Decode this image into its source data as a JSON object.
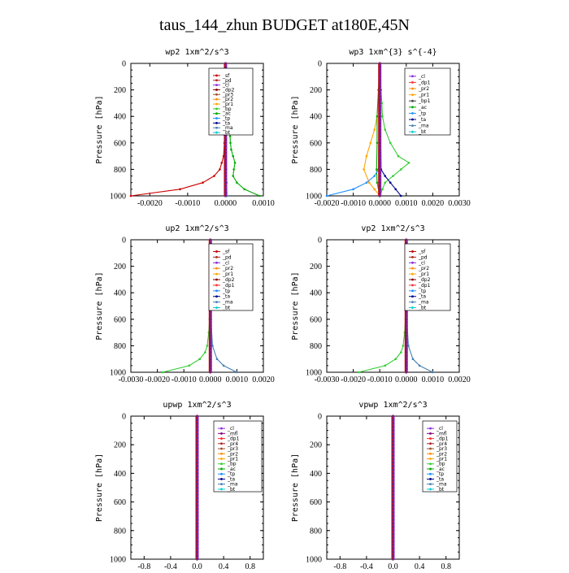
{
  "figure_title": "taus_144_zhun  BUDGET at180E,45N",
  "colors": {
    "sf": "#cc0000",
    "pd": "#b22222",
    "cl": "#8a2be2",
    "dp2": "#8b0000",
    "pr3": "#a0522d",
    "pr2": "#ff8c00",
    "pr1": "#ffa500",
    "bp": "#32cd32",
    "ac": "#00aa00",
    "tp": "#1e90ff",
    "ta": "#00008b",
    "ma": "#4682b4",
    "bt": "#00ced1",
    "dp1": "#ff3030",
    "mfl": "#800080",
    "pr4": "#b22222"
  },
  "chart_data": [
    {
      "type": "line",
      "title": "wp2   1xm^2/s^3",
      "ylabel": "Pressure [hPa]",
      "xlim": [
        -0.0025,
        0.001
      ],
      "ylim": [
        1000,
        0
      ],
      "xticks": [
        -0.002,
        -0.001,
        0.0,
        0.001
      ],
      "xtick_labels": [
        "-0.0020",
        "-0.0010",
        "0.0000",
        "0.0010"
      ],
      "yticks": [
        0,
        200,
        400,
        600,
        800,
        1000
      ],
      "ytick_labels": [
        "0",
        "200",
        "400",
        "600",
        "800",
        "1000"
      ],
      "legend": [
        "_sf",
        "_pd",
        "_cl",
        "_dp2",
        "_pr3",
        "_pr2",
        "_pr1",
        "_bp",
        "_ac",
        "_tp",
        "_ta",
        "_ma",
        "_bt"
      ],
      "legend_position": "top-right",
      "series": [
        {
          "name": "_sf",
          "color": "#cc0000",
          "y": [
            0,
            100,
            200,
            300,
            400,
            500,
            600,
            700,
            750,
            800,
            850,
            900,
            950,
            1000
          ],
          "x": [
            0,
            0,
            0,
            0,
            0,
            -1e-05,
            -3e-05,
            -5e-05,
            -0.0001,
            -0.00015,
            -0.0003,
            -0.0006,
            -0.0012,
            -0.0025
          ]
        },
        {
          "name": "_ac",
          "color": "#00aa00",
          "y": [
            0,
            200,
            400,
            500,
            550,
            600,
            650,
            700,
            750,
            800,
            850,
            900,
            950,
            1000
          ],
          "x": [
            0,
            1e-05,
            4e-05,
            8e-05,
            0.00012,
            0.00013,
            0.00015,
            0.0002,
            0.00025,
            0.00022,
            0.0002,
            0.0003,
            0.0005,
            0.0009
          ]
        },
        {
          "name": "_cl",
          "color": "#8a2be2",
          "y": [
            0,
            200,
            400,
            600,
            800,
            900,
            1000
          ],
          "x": [
            0,
            0,
            0,
            0,
            0,
            0,
            0
          ]
        },
        {
          "name": "_dp2",
          "color": "#8b0000",
          "y": [
            0,
            200,
            400,
            600,
            800,
            900,
            1000
          ],
          "x": [
            0,
            0,
            0,
            0,
            1e-05,
            2e-05,
            3e-05
          ]
        },
        {
          "name": "_tp",
          "color": "#1e90ff",
          "y": [
            0,
            400,
            800,
            900,
            1000
          ],
          "x": [
            0,
            0,
            2e-05,
            3e-05,
            4e-05
          ]
        }
      ]
    },
    {
      "type": "line",
      "title": "wp3   1xm^{3} s^{-4}",
      "ylabel": "Pressure [hPa]",
      "xlim": [
        -0.002,
        0.003
      ],
      "ylim": [
        1000,
        0
      ],
      "xticks": [
        -0.002,
        -0.001,
        0.0,
        0.001,
        0.002,
        0.003
      ],
      "xtick_labels": [
        "-0.0020",
        "-0.0010",
        "0.0000",
        "0.0010",
        "0.0020",
        "0.0030"
      ],
      "yticks": [
        0,
        200,
        400,
        600,
        800,
        1000
      ],
      "ytick_labels": [
        "0",
        "200",
        "400",
        "600",
        "800",
        "1000"
      ],
      "legend": [
        "_cl",
        "_dp1",
        "_pr2",
        "_pr1",
        "_bp1",
        "_ac",
        "_tp",
        "_ta",
        "_ma",
        "_bt"
      ],
      "legend_position": "top-right",
      "series": [
        {
          "name": "_bp1",
          "color": "#32cd32",
          "y": [
            0,
            100,
            200,
            300,
            400,
            500,
            600,
            700,
            750,
            800,
            850,
            900,
            950,
            1000
          ],
          "x": [
            0,
            0,
            5e-05,
            8e-05,
            0.0001,
            0.0002,
            0.0004,
            0.0007,
            0.0011,
            0.0008,
            0.0005,
            0.0002,
            0.0001,
            0
          ]
        },
        {
          "name": "_pr1",
          "color": "#ffa500",
          "y": [
            0,
            200,
            400,
            500,
            600,
            700,
            800,
            900,
            950,
            1000
          ],
          "x": [
            0,
            -5e-05,
            -0.0001,
            -0.0002,
            -0.00035,
            -0.0005,
            -0.0006,
            -0.0004,
            -0.0002,
            0
          ]
        },
        {
          "name": "_ac",
          "color": "#00aa00",
          "y": [
            0,
            200,
            400,
            600,
            800,
            900,
            1000
          ],
          "x": [
            0,
            -5e-05,
            -0.0001,
            -0.0001,
            -0.00012,
            -0.0001,
            0
          ]
        },
        {
          "name": "_tp",
          "color": "#1e90ff",
          "y": [
            0,
            800,
            850,
            900,
            950,
            1000
          ],
          "x": [
            0,
            -5e-05,
            -0.0002,
            -0.0005,
            -0.001,
            -0.002
          ]
        },
        {
          "name": "_ta",
          "color": "#00008b",
          "y": [
            0,
            800,
            850,
            900,
            950,
            1000
          ],
          "x": [
            0,
            5e-05,
            0.0002,
            0.0004,
            0.0006,
            0.0008
          ]
        },
        {
          "name": "_cl",
          "color": "#cc0000",
          "y": [
            0,
            200,
            400,
            600,
            800,
            1000
          ],
          "x": [
            0,
            0,
            0,
            0,
            0,
            0
          ]
        }
      ]
    },
    {
      "type": "line",
      "title": "up2   1xm^2/s^3",
      "ylabel": "Pressure [hPa]",
      "xlim": [
        -0.003,
        0.002
      ],
      "ylim": [
        1000,
        0
      ],
      "xticks": [
        -0.003,
        -0.002,
        -0.001,
        0.0,
        0.001,
        0.002
      ],
      "xtick_labels": [
        "-0.0030",
        "-0.0020",
        "-0.0010",
        "0.0000",
        "0.0010",
        "0.0020"
      ],
      "yticks": [
        0,
        200,
        400,
        600,
        800,
        1000
      ],
      "ytick_labels": [
        "0",
        "200",
        "400",
        "600",
        "800",
        "1000"
      ],
      "legend": [
        "_sf",
        "_pd",
        "_cl",
        "_pr2",
        "_pr1",
        "_dp2",
        "_dp1",
        "_tp",
        "_ta",
        "_ma",
        "_bt"
      ],
      "legend_position": "top-right",
      "series": [
        {
          "name": "_dp2",
          "color": "#32cd32",
          "y": [
            0,
            200,
            400,
            600,
            700,
            800,
            850,
            900,
            950,
            1000
          ],
          "x": [
            0,
            0,
            -1e-05,
            -3e-05,
            -6e-05,
            -0.00012,
            -0.0002,
            -0.0004,
            -0.0008,
            -0.0018
          ]
        },
        {
          "name": "_tp",
          "color": "#4682b4",
          "y": [
            0,
            400,
            600,
            800,
            900,
            950,
            1000
          ],
          "x": [
            0,
            0,
            2e-05,
            8e-05,
            0.00025,
            0.0005,
            0.001
          ]
        },
        {
          "name": "_cl",
          "color": "#cc0000",
          "y": [
            0,
            200,
            400,
            600,
            800,
            1000
          ],
          "x": [
            0,
            0,
            0,
            0,
            0,
            0
          ]
        }
      ]
    },
    {
      "type": "line",
      "title": "vp2   1xm^2/s^3",
      "ylabel": "Pressure [hPa]",
      "xlim": [
        -0.003,
        0.002
      ],
      "ylim": [
        1000,
        0
      ],
      "xticks": [
        -0.003,
        -0.002,
        -0.001,
        0.0,
        0.001,
        0.002
      ],
      "xtick_labels": [
        "-0.0030",
        "-0.0020",
        "-0.0010",
        "0.0000",
        "0.0010",
        "0.0020"
      ],
      "yticks": [
        0,
        200,
        400,
        600,
        800,
        1000
      ],
      "ytick_labels": [
        "0",
        "200",
        "400",
        "600",
        "800",
        "1000"
      ],
      "legend": [
        "_sf",
        "_pd",
        "_cl",
        "_pr2",
        "_pr1",
        "_dp2",
        "_dp1",
        "_tp",
        "_ta",
        "_ma",
        "_bt"
      ],
      "legend_position": "top-right",
      "series": [
        {
          "name": "_dp2",
          "color": "#32cd32",
          "y": [
            0,
            200,
            400,
            600,
            700,
            800,
            850,
            900,
            950,
            1000
          ],
          "x": [
            0,
            0,
            -1e-05,
            -3e-05,
            -6e-05,
            -0.00012,
            -0.0002,
            -0.0004,
            -0.0008,
            -0.0018
          ]
        },
        {
          "name": "_tp",
          "color": "#4682b4",
          "y": [
            0,
            400,
            600,
            800,
            900,
            950,
            1000
          ],
          "x": [
            0,
            0,
            2e-05,
            8e-05,
            0.00025,
            0.0005,
            0.001
          ]
        },
        {
          "name": "_cl",
          "color": "#cc0000",
          "y": [
            0,
            200,
            400,
            600,
            800,
            1000
          ],
          "x": [
            0,
            0,
            0,
            0,
            0,
            0
          ]
        }
      ]
    },
    {
      "type": "line",
      "title": "upwp   1xm^2/s^3",
      "ylabel": "Pressure [hPa]",
      "xlim": [
        -1.0,
        1.0
      ],
      "ylim": [
        1000,
        0
      ],
      "xticks": [
        -0.8,
        -0.4,
        0.0,
        0.4,
        0.8
      ],
      "xtick_labels": [
        "-0.8",
        "-0.4",
        "0.0",
        "0.4",
        "0.8"
      ],
      "yticks": [
        0,
        200,
        400,
        600,
        800,
        1000
      ],
      "ytick_labels": [
        "0",
        "200",
        "400",
        "600",
        "800",
        "1000"
      ],
      "legend": [
        "_cl",
        "_mfl",
        "_dp1",
        "_pr4",
        "_pr3",
        "_pr2",
        "_pr1",
        "_bp",
        "_ac",
        "_tp",
        "_ta",
        "_ma",
        "_bt"
      ],
      "legend_position": "top-right",
      "series": [
        {
          "name": "_mfl",
          "color": "#800080",
          "y": [
            0,
            200,
            400,
            600,
            800,
            1000
          ],
          "x": [
            0,
            0,
            0,
            0,
            0,
            0
          ]
        }
      ]
    },
    {
      "type": "line",
      "title": "vpwp   1xm^2/s^3",
      "ylabel": "Pressure [hPa]",
      "xlim": [
        -1.0,
        1.0
      ],
      "ylim": [
        1000,
        0
      ],
      "xticks": [
        -0.8,
        -0.4,
        0.0,
        0.4,
        0.8
      ],
      "xtick_labels": [
        "-0.8",
        "-0.4",
        "0.0",
        "0.4",
        "0.8"
      ],
      "yticks": [
        0,
        200,
        400,
        600,
        800,
        1000
      ],
      "ytick_labels": [
        "0",
        "200",
        "400",
        "600",
        "800",
        "1000"
      ],
      "legend": [
        "_cl",
        "_mfl",
        "_dp1",
        "_pr4",
        "_pr3",
        "_pr2",
        "_pr1",
        "_bp",
        "_ac",
        "_tp",
        "_ta",
        "_ma",
        "_bt"
      ],
      "legend_position": "top-right",
      "series": [
        {
          "name": "_mfl",
          "color": "#800080",
          "y": [
            0,
            200,
            400,
            600,
            800,
            1000
          ],
          "x": [
            0,
            0,
            0,
            0,
            0,
            0
          ]
        }
      ]
    }
  ]
}
